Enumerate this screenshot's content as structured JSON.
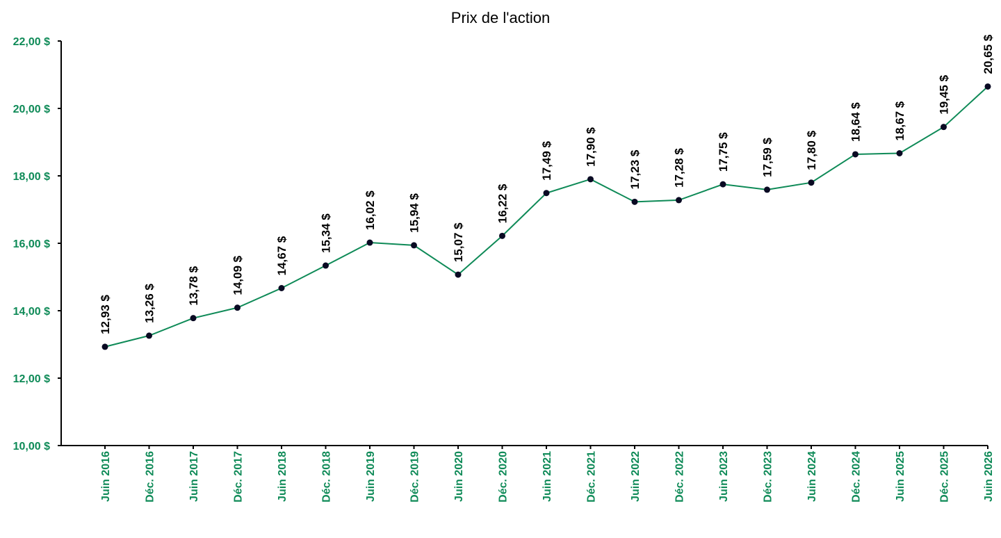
{
  "chart_data": {
    "type": "line",
    "title": "Prix de l'action",
    "xlabel": "",
    "ylabel": "",
    "ylim": [
      10,
      22
    ],
    "yticks": [
      10,
      12,
      14,
      16,
      18,
      20,
      22
    ],
    "ytick_labels": [
      "10,00 $",
      "12,00 $",
      "14,00 $",
      "16,00 $",
      "18,00 $",
      "20,00 $",
      "22,00 $"
    ],
    "grid": false,
    "legend": "none",
    "categories": [
      "Juin 2016",
      "Déc. 2016",
      "Juin 2017",
      "Déc. 2017",
      "Juin 2018",
      "Déc. 2018",
      "Juin 2019",
      "Déc. 2019",
      "Juin 2020",
      "Déc. 2020",
      "Juin 2021",
      "Déc. 2021",
      "Juin 2022",
      "Déc. 2022",
      "Juin 2023",
      "Déc. 2023",
      "Juin 2024",
      "Déc. 2024",
      "Juin 2025",
      "Déc. 2025",
      "Juin 2026"
    ],
    "series": [
      {
        "values": [
          12.93,
          13.26,
          13.78,
          14.09,
          14.67,
          15.34,
          16.02,
          15.94,
          15.07,
          16.22,
          17.49,
          17.9,
          17.23,
          17.28,
          17.75,
          17.59,
          17.8,
          18.64,
          18.67,
          19.45,
          20.65
        ],
        "labels": [
          "12,93 $",
          "13,26 $",
          "13,78 $",
          "14,09 $",
          "14,67 $",
          "15,34 $",
          "16,02 $",
          "15,94 $",
          "15,07 $",
          "16,22 $",
          "17,49 $",
          "17,90 $",
          "17,23 $",
          "17,28 $",
          "17,75 $",
          "17,59 $",
          "17,80 $",
          "18,64 $",
          "18,67 $",
          "19,45 $",
          "20,65 $"
        ]
      }
    ],
    "colors": {
      "line": "#0e8a57",
      "marker": "#0a0a23",
      "axis_text": "#0e8a57",
      "data_label": "#000000",
      "axis": "#000000"
    }
  }
}
